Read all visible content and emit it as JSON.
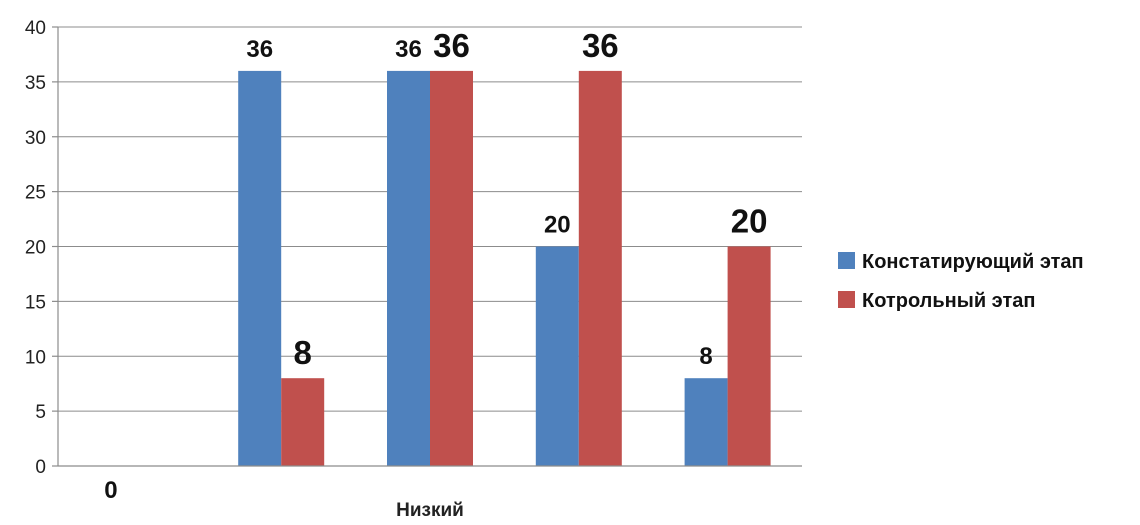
{
  "chart_data": {
    "type": "bar",
    "title": "",
    "xlabel": "",
    "ylabel": "",
    "ylim": [
      0,
      40
    ],
    "y_ticks": [
      0,
      5,
      10,
      15,
      20,
      25,
      30,
      35,
      40
    ],
    "grid": true,
    "legend_position": "right",
    "categories": [
      "",
      "",
      "",
      "",
      ""
    ],
    "category_labels_shown": [
      "",
      "",
      "Низкий",
      "",
      ""
    ],
    "series": [
      {
        "name": "Констатирующий этап",
        "color": "#4f81bd",
        "values": [
          0,
          36,
          36,
          20,
          8
        ],
        "labels": [
          "0",
          "36",
          "36",
          "20",
          "8"
        ]
      },
      {
        "name": "Котрольный этап",
        "color": "#c0504d",
        "values": [
          0,
          8,
          36,
          36,
          20
        ],
        "labels": [
          "",
          "8",
          "36",
          "36",
          "20"
        ]
      }
    ]
  }
}
